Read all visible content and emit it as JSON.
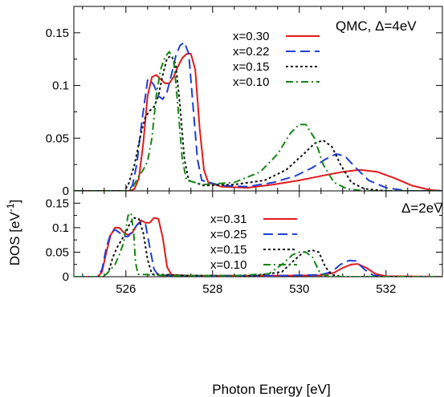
{
  "figure": {
    "ylabel": "DOS [eV",
    "ylabel_sup": "-1",
    "ylabel_close": "]",
    "xlabel": "Photon Energy [eV]"
  },
  "chart_data": [
    {
      "type": "line",
      "panel": "top",
      "title": "QMC, Δ=4eV",
      "xlim": [
        524.8,
        533.3
      ],
      "ylim": [
        0,
        0.175
      ],
      "x_ticks": [
        526,
        528,
        530,
        532
      ],
      "x_tick_labels": [
        "526",
        "528",
        "530",
        "532"
      ],
      "y_ticks": [
        0,
        0.05,
        0.1,
        0.15
      ],
      "y_tick_labels": [
        "0",
        "0.05",
        "0.1",
        "0.15"
      ],
      "legend_position": "top-right",
      "series": [
        {
          "name": "x=0.30",
          "color": "#e31a1c",
          "dash": "solid",
          "points": [
            [
              524.8,
              0
            ],
            [
              526.1,
              0
            ],
            [
              526.2,
              0.002
            ],
            [
              526.3,
              0.012
            ],
            [
              526.4,
              0.045
            ],
            [
              526.5,
              0.09
            ],
            [
              526.6,
              0.108
            ],
            [
              526.7,
              0.11
            ],
            [
              526.8,
              0.106
            ],
            [
              526.9,
              0.102
            ],
            [
              527.0,
              0.102
            ],
            [
              527.1,
              0.108
            ],
            [
              527.2,
              0.118
            ],
            [
              527.3,
              0.126
            ],
            [
              527.4,
              0.13
            ],
            [
              527.5,
              0.13
            ],
            [
              527.6,
              0.115
            ],
            [
              527.7,
              0.06
            ],
            [
              527.8,
              0.02
            ],
            [
              527.9,
              0.008
            ],
            [
              528.2,
              0.004
            ],
            [
              528.8,
              0.003
            ],
            [
              529.4,
              0.006
            ],
            [
              530.0,
              0.01
            ],
            [
              530.6,
              0.015
            ],
            [
              531.0,
              0.018
            ],
            [
              531.4,
              0.02
            ],
            [
              531.8,
              0.018
            ],
            [
              532.2,
              0.012
            ],
            [
              532.6,
              0.005
            ],
            [
              533.0,
              0.001
            ],
            [
              533.3,
              0
            ]
          ]
        },
        {
          "name": "x=0.22",
          "color": "#1f3fd6",
          "dash": "dashed",
          "points": [
            [
              524.8,
              0
            ],
            [
              526.05,
              0
            ],
            [
              526.15,
              0.005
            ],
            [
              526.25,
              0.025
            ],
            [
              526.35,
              0.06
            ],
            [
              526.45,
              0.09
            ],
            [
              526.5,
              0.105
            ],
            [
              526.55,
              0.106
            ],
            [
              526.65,
              0.1
            ],
            [
              526.75,
              0.09
            ],
            [
              526.85,
              0.087
            ],
            [
              526.95,
              0.094
            ],
            [
              527.05,
              0.11
            ],
            [
              527.15,
              0.128
            ],
            [
              527.25,
              0.138
            ],
            [
              527.35,
              0.141
            ],
            [
              527.45,
              0.13
            ],
            [
              527.55,
              0.08
            ],
            [
              527.65,
              0.03
            ],
            [
              527.75,
              0.01
            ],
            [
              528.2,
              0.005
            ],
            [
              528.8,
              0.004
            ],
            [
              529.4,
              0.008
            ],
            [
              529.9,
              0.014
            ],
            [
              530.3,
              0.022
            ],
            [
              530.6,
              0.03
            ],
            [
              530.85,
              0.035
            ],
            [
              531.05,
              0.033
            ],
            [
              531.3,
              0.022
            ],
            [
              531.6,
              0.01
            ],
            [
              532.0,
              0.003
            ],
            [
              532.5,
              0
            ],
            [
              533.3,
              0
            ]
          ]
        },
        {
          "name": "x=0.15",
          "color": "#111111",
          "dash": "dotted",
          "points": [
            [
              524.8,
              0
            ],
            [
              525.95,
              0
            ],
            [
              526.05,
              0.005
            ],
            [
              526.2,
              0.025
            ],
            [
              526.35,
              0.055
            ],
            [
              526.45,
              0.07
            ],
            [
              526.55,
              0.076
            ],
            [
              526.65,
              0.08
            ],
            [
              526.75,
              0.09
            ],
            [
              526.85,
              0.11
            ],
            [
              526.95,
              0.126
            ],
            [
              527.05,
              0.128
            ],
            [
              527.15,
              0.12
            ],
            [
              527.25,
              0.08
            ],
            [
              527.35,
              0.03
            ],
            [
              527.45,
              0.01
            ],
            [
              527.8,
              0.005
            ],
            [
              528.5,
              0.006
            ],
            [
              529.2,
              0.01
            ],
            [
              529.7,
              0.02
            ],
            [
              530.1,
              0.035
            ],
            [
              530.35,
              0.045
            ],
            [
              530.55,
              0.048
            ],
            [
              530.75,
              0.042
            ],
            [
              530.95,
              0.025
            ],
            [
              531.2,
              0.008
            ],
            [
              531.5,
              0.002
            ],
            [
              532.0,
              0
            ],
            [
              533.3,
              0
            ]
          ]
        },
        {
          "name": "x=0.10",
          "color": "#178517",
          "dash": "dashdot",
          "points": [
            [
              524.8,
              0
            ],
            [
              526.05,
              0
            ],
            [
              526.15,
              0.003
            ],
            [
              526.3,
              0.014
            ],
            [
              526.4,
              0.02
            ],
            [
              526.5,
              0.028
            ],
            [
              526.6,
              0.05
            ],
            [
              526.7,
              0.09
            ],
            [
              526.8,
              0.115
            ],
            [
              526.9,
              0.127
            ],
            [
              527.0,
              0.132
            ],
            [
              527.1,
              0.125
            ],
            [
              527.2,
              0.08
            ],
            [
              527.3,
              0.03
            ],
            [
              527.4,
              0.01
            ],
            [
              527.8,
              0.006
            ],
            [
              528.5,
              0.008
            ],
            [
              529.1,
              0.018
            ],
            [
              529.5,
              0.035
            ],
            [
              529.8,
              0.055
            ],
            [
              530.0,
              0.063
            ],
            [
              530.15,
              0.063
            ],
            [
              530.35,
              0.05
            ],
            [
              530.55,
              0.025
            ],
            [
              530.8,
              0.008
            ],
            [
              531.1,
              0.002
            ],
            [
              531.5,
              0
            ],
            [
              533.3,
              0
            ]
          ]
        }
      ]
    },
    {
      "type": "line",
      "panel": "bottom",
      "title": "Δ=2eV",
      "xlim": [
        524.8,
        533.3
      ],
      "ylim": [
        0,
        0.175
      ],
      "x_ticks": [
        526,
        528,
        530,
        532
      ],
      "x_tick_labels": [
        "526",
        "528",
        "530",
        "532"
      ],
      "y_ticks": [
        0,
        0.05,
        0.1,
        0.15
      ],
      "y_tick_labels": [
        "0",
        "0.05",
        "0.1",
        "0.15"
      ],
      "legend_position": "top-center",
      "series": [
        {
          "name": "x=0.31",
          "color": "#e31a1c",
          "dash": "solid",
          "points": [
            [
              524.8,
              0
            ],
            [
              525.35,
              0
            ],
            [
              525.45,
              0.01
            ],
            [
              525.55,
              0.05
            ],
            [
              525.65,
              0.085
            ],
            [
              525.75,
              0.1
            ],
            [
              525.85,
              0.1
            ],
            [
              525.95,
              0.09
            ],
            [
              526.05,
              0.085
            ],
            [
              526.15,
              0.09
            ],
            [
              526.25,
              0.105
            ],
            [
              526.35,
              0.115
            ],
            [
              526.45,
              0.11
            ],
            [
              526.55,
              0.11
            ],
            [
              526.65,
              0.12
            ],
            [
              526.75,
              0.118
            ],
            [
              526.85,
              0.08
            ],
            [
              526.95,
              0.02
            ],
            [
              527.05,
              0.004
            ],
            [
              527.5,
              0.002
            ],
            [
              528.5,
              0.002
            ],
            [
              529.5,
              0.002
            ],
            [
              530.5,
              0.003
            ],
            [
              530.8,
              0.008
            ],
            [
              531.0,
              0.018
            ],
            [
              531.2,
              0.025
            ],
            [
              531.35,
              0.026
            ],
            [
              531.55,
              0.018
            ],
            [
              531.75,
              0.006
            ],
            [
              532.0,
              0.001
            ],
            [
              533.3,
              0
            ]
          ]
        },
        {
          "name": "x=0.25",
          "color": "#1f3fd6",
          "dash": "dashed",
          "points": [
            [
              524.8,
              0
            ],
            [
              525.35,
              0
            ],
            [
              525.45,
              0.015
            ],
            [
              525.55,
              0.06
            ],
            [
              525.65,
              0.088
            ],
            [
              525.75,
              0.096
            ],
            [
              525.85,
              0.09
            ],
            [
              525.95,
              0.082
            ],
            [
              526.05,
              0.082
            ],
            [
              526.15,
              0.092
            ],
            [
              526.25,
              0.105
            ],
            [
              526.35,
              0.112
            ],
            [
              526.45,
              0.108
            ],
            [
              526.55,
              0.06
            ],
            [
              526.65,
              0.015
            ],
            [
              526.75,
              0.003
            ],
            [
              527.5,
              0.002
            ],
            [
              529.5,
              0.002
            ],
            [
              530.5,
              0.004
            ],
            [
              530.75,
              0.01
            ],
            [
              530.95,
              0.025
            ],
            [
              531.15,
              0.033
            ],
            [
              531.3,
              0.032
            ],
            [
              531.5,
              0.015
            ],
            [
              531.7,
              0.003
            ],
            [
              532.0,
              0
            ],
            [
              533.3,
              0
            ]
          ]
        },
        {
          "name": "x=0.15",
          "color": "#111111",
          "dash": "dotted",
          "points": [
            [
              524.8,
              0
            ],
            [
              525.5,
              0
            ],
            [
              525.6,
              0.01
            ],
            [
              525.7,
              0.04
            ],
            [
              525.8,
              0.06
            ],
            [
              525.9,
              0.075
            ],
            [
              526.0,
              0.09
            ],
            [
              526.1,
              0.11
            ],
            [
              526.2,
              0.12
            ],
            [
              526.3,
              0.118
            ],
            [
              526.4,
              0.09
            ],
            [
              526.5,
              0.035
            ],
            [
              526.6,
              0.005
            ],
            [
              527.5,
              0.002
            ],
            [
              529.0,
              0.002
            ],
            [
              529.6,
              0.01
            ],
            [
              529.9,
              0.035
            ],
            [
              530.1,
              0.05
            ],
            [
              530.3,
              0.054
            ],
            [
              530.45,
              0.05
            ],
            [
              530.6,
              0.02
            ],
            [
              530.75,
              0.004
            ],
            [
              531.0,
              0
            ],
            [
              533.3,
              0
            ]
          ]
        },
        {
          "name": "x=0.10",
          "color": "#178517",
          "dash": "dashdot",
          "points": [
            [
              524.8,
              0
            ],
            [
              525.45,
              0
            ],
            [
              525.55,
              0.005
            ],
            [
              525.65,
              0.015
            ],
            [
              525.75,
              0.025
            ],
            [
              525.85,
              0.045
            ],
            [
              525.95,
              0.07
            ],
            [
              526.05,
              0.125
            ],
            [
              526.12,
              0.13
            ],
            [
              526.18,
              0.09
            ],
            [
              526.22,
              0.03
            ],
            [
              526.28,
              0.005
            ],
            [
              527.0,
              0.002
            ],
            [
              528.5,
              0.002
            ],
            [
              529.3,
              0.006
            ],
            [
              529.6,
              0.025
            ],
            [
              529.85,
              0.045
            ],
            [
              530.0,
              0.05
            ],
            [
              530.15,
              0.05
            ],
            [
              530.3,
              0.04
            ],
            [
              530.45,
              0.012
            ],
            [
              530.6,
              0.002
            ],
            [
              531.0,
              0
            ],
            [
              533.3,
              0
            ]
          ]
        }
      ]
    }
  ]
}
